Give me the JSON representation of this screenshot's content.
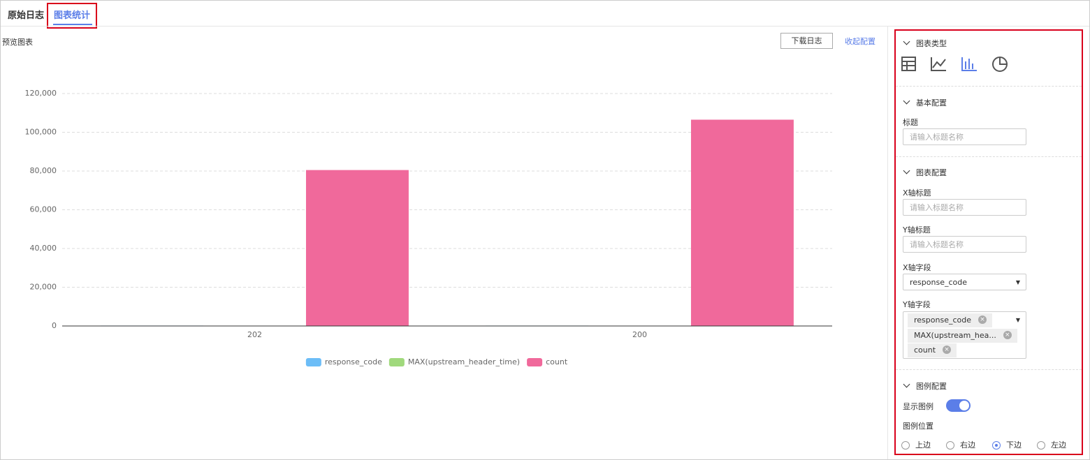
{
  "tabs": [
    "原始日志",
    "图表统计"
  ],
  "preview_label": "预览图表",
  "download_button": "下载日志",
  "collapse_link": "收起配置",
  "chart_data": {
    "type": "bar",
    "categories": [
      "202",
      "200"
    ],
    "series": [
      {
        "name": "response_code",
        "color": "#6cbdf7",
        "values": [
          202,
          200
        ]
      },
      {
        "name": "MAX(upstream_header_time)",
        "color": "#a0d97c",
        "values": [
          0,
          0
        ]
      },
      {
        "name": "count",
        "color": "#f0699b",
        "values": [
          80500,
          106500
        ]
      }
    ],
    "ylim": [
      0,
      120000
    ],
    "yticks": [
      0,
      {
        "value": 20000,
        "label": "20,000"
      },
      {
        "value": 40000,
        "label": "40,000"
      },
      {
        "value": 60000,
        "label": "60,000"
      },
      {
        "value": 80000,
        "label": "80,000"
      },
      {
        "value": 100000,
        "label": "100,000"
      },
      {
        "value": 120000,
        "label": "120,000"
      }
    ],
    "grid": true,
    "legend": "bottom"
  },
  "panel": {
    "chart_type": {
      "title": "图表类型"
    },
    "basic": {
      "title": "基本配置",
      "title_label": "标题",
      "title_placeholder": "请输入标题名称"
    },
    "chart_config": {
      "title": "图表配置",
      "x_title_label": "X轴标题",
      "x_title_placeholder": "请输入标题名称",
      "y_title_label": "Y轴标题",
      "y_title_placeholder": "请输入标题名称",
      "x_field_label": "X轴字段",
      "x_field_value": "response_code",
      "y_field_label": "Y轴字段",
      "y_field_tags": [
        "response_code",
        "MAX(upstream_hea...",
        "count"
      ]
    },
    "legend_config": {
      "title": "图例配置",
      "show_label": "显示图例",
      "position_label": "图例位置",
      "positions": [
        "上边",
        "右边",
        "下边",
        "左边"
      ]
    }
  }
}
